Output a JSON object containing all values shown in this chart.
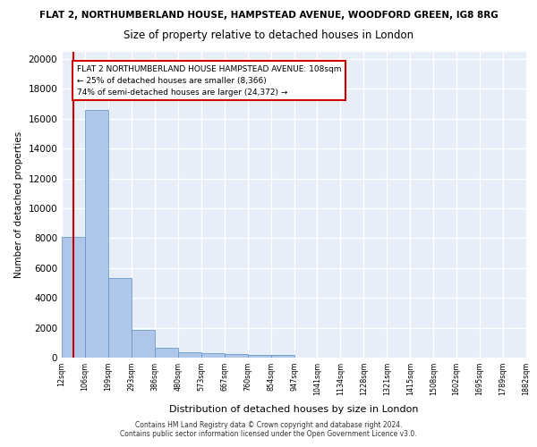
{
  "title_line1": "FLAT 2, NORTHUMBERLAND HOUSE, HAMPSTEAD AVENUE, WOODFORD GREEN, IG8 8RG",
  "title_line2": "Size of property relative to detached houses in London",
  "xlabel": "Distribution of detached houses by size in London",
  "ylabel": "Number of detached properties",
  "bin_edges": [
    "12sqm",
    "106sqm",
    "199sqm",
    "293sqm",
    "386sqm",
    "480sqm",
    "573sqm",
    "667sqm",
    "760sqm",
    "854sqm",
    "947sqm",
    "1041sqm",
    "1134sqm",
    "1228sqm",
    "1321sqm",
    "1415sqm",
    "1508sqm",
    "1602sqm",
    "1695sqm",
    "1789sqm",
    "1882sqm"
  ],
  "bar_heights": [
    8100,
    16600,
    5300,
    1850,
    680,
    360,
    270,
    215,
    200,
    185,
    0,
    0,
    0,
    0,
    0,
    0,
    0,
    0,
    0,
    0
  ],
  "bar_color": "#aec6e8",
  "bar_edge_color": "#5b8fc9",
  "vline_color": "#cc0000",
  "vline_x": 0.5,
  "annotation_text": "FLAT 2 NORTHUMBERLAND HOUSE HAMPSTEAD AVENUE: 108sqm\n← 25% of detached houses are smaller (8,366)\n74% of semi-detached houses are larger (24,372) →",
  "annotation_box_facecolor": "#ffffff",
  "annotation_box_edgecolor": "#cc0000",
  "ylim": [
    0,
    20500
  ],
  "yticks": [
    0,
    2000,
    4000,
    6000,
    8000,
    10000,
    12000,
    14000,
    16000,
    18000,
    20000
  ],
  "footer_line1": "Contains HM Land Registry data © Crown copyright and database right 2024.",
  "footer_line2": "Contains public sector information licensed under the Open Government Licence v3.0.",
  "background_color": "#e8eef8",
  "grid_color": "#ffffff"
}
